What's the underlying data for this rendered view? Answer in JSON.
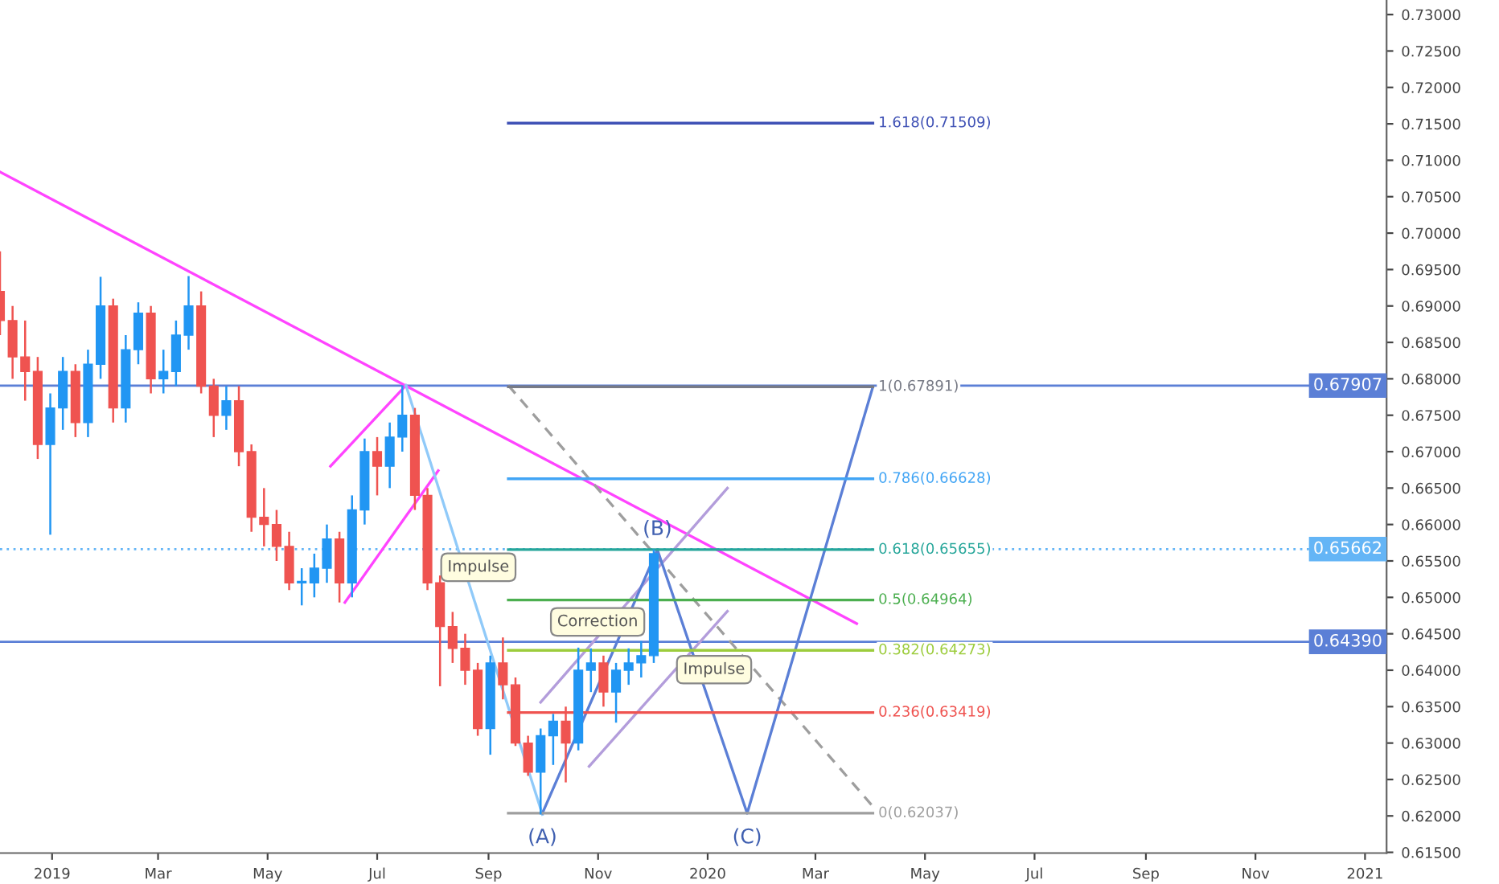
{
  "chart_data": {
    "type": "candlestick",
    "x": [
      "2018-12-03",
      "2018-12-10",
      "2018-12-17",
      "2018-12-24",
      "2018-12-31",
      "2019-01-07",
      "2019-01-14",
      "2019-01-21",
      "2019-01-28",
      "2019-02-04",
      "2019-02-11",
      "2019-02-18",
      "2019-02-25",
      "2019-03-04",
      "2019-03-11",
      "2019-03-18",
      "2019-03-25",
      "2019-04-01",
      "2019-04-08",
      "2019-04-15",
      "2019-04-22",
      "2019-04-29",
      "2019-05-06",
      "2019-05-13",
      "2019-05-20",
      "2019-05-27",
      "2019-06-03",
      "2019-06-10",
      "2019-06-17",
      "2019-06-24",
      "2019-07-01",
      "2019-07-08",
      "2019-07-15",
      "2019-07-22",
      "2019-07-29",
      "2019-08-05",
      "2019-08-12",
      "2019-08-19",
      "2019-08-26",
      "2019-09-02",
      "2019-09-09",
      "2019-09-16",
      "2019-09-23",
      "2019-09-30",
      "2019-10-07",
      "2019-10-14",
      "2019-10-21",
      "2019-10-28",
      "2019-11-04",
      "2019-11-11",
      "2019-11-18",
      "2019-11-25",
      "2019-12-02"
    ],
    "ohlc": [
      [
        0.692,
        0.6975,
        0.686,
        0.688
      ],
      [
        0.688,
        0.69,
        0.68,
        0.683
      ],
      [
        0.683,
        0.688,
        0.677,
        0.681
      ],
      [
        0.681,
        0.683,
        0.669,
        0.671
      ],
      [
        0.671,
        0.678,
        0.6586,
        0.676
      ],
      [
        0.676,
        0.683,
        0.673,
        0.681
      ],
      [
        0.681,
        0.682,
        0.672,
        0.674
      ],
      [
        0.674,
        0.684,
        0.672,
        0.682
      ],
      [
        0.682,
        0.694,
        0.68,
        0.69
      ],
      [
        0.69,
        0.691,
        0.674,
        0.676
      ],
      [
        0.676,
        0.686,
        0.674,
        0.684
      ],
      [
        0.684,
        0.6905,
        0.682,
        0.689
      ],
      [
        0.689,
        0.69,
        0.678,
        0.68
      ],
      [
        0.68,
        0.684,
        0.678,
        0.681
      ],
      [
        0.681,
        0.688,
        0.679,
        0.686
      ],
      [
        0.686,
        0.6941,
        0.684,
        0.69
      ],
      [
        0.69,
        0.692,
        0.678,
        0.679
      ],
      [
        0.679,
        0.68,
        0.672,
        0.675
      ],
      [
        0.675,
        0.679,
        0.673,
        0.677
      ],
      [
        0.677,
        0.679,
        0.668,
        0.67
      ],
      [
        0.67,
        0.671,
        0.659,
        0.661
      ],
      [
        0.661,
        0.665,
        0.657,
        0.66
      ],
      [
        0.66,
        0.662,
        0.655,
        0.657
      ],
      [
        0.657,
        0.659,
        0.651,
        0.652
      ],
      [
        0.652,
        0.654,
        0.6489,
        0.652
      ],
      [
        0.652,
        0.656,
        0.65,
        0.654
      ],
      [
        0.654,
        0.66,
        0.652,
        0.658
      ],
      [
        0.658,
        0.659,
        0.6493,
        0.652
      ],
      [
        0.652,
        0.664,
        0.65,
        0.662
      ],
      [
        0.662,
        0.6718,
        0.66,
        0.67
      ],
      [
        0.67,
        0.672,
        0.664,
        0.668
      ],
      [
        0.668,
        0.674,
        0.665,
        0.672
      ],
      [
        0.672,
        0.6791,
        0.67,
        0.675
      ],
      [
        0.675,
        0.676,
        0.662,
        0.664
      ],
      [
        0.664,
        0.665,
        0.651,
        0.652
      ],
      [
        0.652,
        0.653,
        0.6378,
        0.646
      ],
      [
        0.646,
        0.648,
        0.641,
        0.643
      ],
      [
        0.643,
        0.645,
        0.638,
        0.64
      ],
      [
        0.64,
        0.641,
        0.631,
        0.632
      ],
      [
        0.632,
        0.642,
        0.6284,
        0.641
      ],
      [
        0.641,
        0.6445,
        0.636,
        0.638
      ],
      [
        0.638,
        0.639,
        0.6296,
        0.63
      ],
      [
        0.63,
        0.631,
        0.6255,
        0.626
      ],
      [
        0.626,
        0.632,
        0.6202,
        0.631
      ],
      [
        0.631,
        0.634,
        0.627,
        0.633
      ],
      [
        0.633,
        0.635,
        0.6246,
        0.63
      ],
      [
        0.63,
        0.6431,
        0.629,
        0.64
      ],
      [
        0.64,
        0.643,
        0.637,
        0.641
      ],
      [
        0.641,
        0.642,
        0.635,
        0.637
      ],
      [
        0.637,
        0.641,
        0.6328,
        0.64
      ],
      [
        0.64,
        0.643,
        0.638,
        0.641
      ],
      [
        0.641,
        0.644,
        0.639,
        0.642
      ],
      [
        0.642,
        0.6566,
        0.641,
        0.656
      ]
    ],
    "colors": [
      "#ef5350",
      "#ef5350",
      "#ef5350",
      "#ef5350",
      "#2196f3",
      "#2196f3",
      "#ef5350",
      "#2196f3",
      "#2196f3",
      "#ef5350",
      "#2196f3",
      "#2196f3",
      "#ef5350",
      "#2196f3",
      "#2196f3",
      "#2196f3",
      "#ef5350",
      "#ef5350",
      "#2196f3",
      "#ef5350",
      "#ef5350",
      "#ef5350",
      "#ef5350",
      "#ef5350",
      "#2196f3",
      "#2196f3",
      "#2196f3",
      "#ef5350",
      "#2196f3",
      "#2196f3",
      "#ef5350",
      "#2196f3",
      "#2196f3",
      "#ef5350",
      "#ef5350",
      "#ef5350",
      "#ef5350",
      "#ef5350",
      "#ef5350",
      "#2196f3",
      "#ef5350",
      "#ef5350",
      "#ef5350",
      "#2196f3",
      "#2196f3",
      "#ef5350",
      "#2196f3",
      "#2196f3",
      "#ef5350",
      "#2196f3",
      "#2196f3",
      "#2196f3",
      "#2196f3"
    ],
    "series": [
      {
        "type": "line",
        "color": "#ff44ff",
        "x": [
          "2018-12-03",
          "2020-03-24"
        ],
        "values": [
          0.7084,
          0.6464
        ]
      },
      {
        "type": "line",
        "color": "#ff44ff",
        "x": [
          "2019-06-05",
          "2019-07-17"
        ],
        "values": [
          0.668,
          0.6791
        ]
      },
      {
        "type": "line",
        "color": "#ff44ff",
        "x": [
          "2019-06-13",
          "2019-08-04"
        ],
        "values": [
          0.6493,
          0.6674
        ]
      },
      {
        "type": "line",
        "color": "#90caf9",
        "x": [
          "2019-07-17",
          "2019-10-01"
        ],
        "values": [
          0.6791,
          0.6202
        ]
      },
      {
        "type": "line",
        "color": "#9e9e9e",
        "line_style": "dashed",
        "x": [
          "2019-09-12",
          "2020-04-02"
        ],
        "values": [
          0.6791,
          0.6213
        ]
      },
      {
        "type": "line",
        "color": "#b39ddb",
        "x": [
          "2019-09-30",
          "2020-01-12"
        ],
        "values": [
          0.6356,
          0.665
        ]
      },
      {
        "type": "line",
        "color": "#b39ddb",
        "x": [
          "2019-10-27",
          "2020-01-12"
        ],
        "values": [
          0.6268,
          0.6481
        ]
      },
      {
        "type": "line",
        "color": "#5b7fd6",
        "x": [
          "2019-10-01",
          "2019-12-04",
          "2020-01-23",
          "2020-04-02"
        ],
        "values": [
          0.62037,
          0.65655,
          0.62037,
          0.67891
        ]
      },
      {
        "type": "line",
        "name": "1.618(0.71509)",
        "color": "#3f51b5",
        "x": [
          "2019-09-12",
          "2020-04-02"
        ],
        "values": [
          0.71509,
          0.71509
        ]
      },
      {
        "type": "line",
        "name": "1(0.67891)",
        "color": "#787b86",
        "x": [
          "2019-09-12",
          "2020-04-02"
        ],
        "values": [
          0.67891,
          0.67891
        ]
      },
      {
        "type": "line",
        "name": "0.786(0.66628)",
        "color": "#42a5f5",
        "x": [
          "2019-09-12",
          "2020-04-02"
        ],
        "values": [
          0.66628,
          0.66628
        ]
      },
      {
        "type": "line",
        "name": "0.618(0.65655)",
        "color": "#26a69a",
        "x": [
          "2019-09-12",
          "2020-04-02"
        ],
        "values": [
          0.65655,
          0.65655
        ]
      },
      {
        "type": "line",
        "name": "0.5(0.64964)",
        "color": "#4caf50",
        "x": [
          "2019-09-12",
          "2020-04-02"
        ],
        "values": [
          0.64964,
          0.64964
        ]
      },
      {
        "type": "line",
        "name": "0.382(0.64273)",
        "color": "#9ccc3c",
        "x": [
          "2019-09-12",
          "2020-04-02"
        ],
        "values": [
          0.64273,
          0.64273
        ]
      },
      {
        "type": "line",
        "name": "0.236(0.63419)",
        "color": "#ef5350",
        "x": [
          "2019-09-12",
          "2020-04-02"
        ],
        "values": [
          0.63419,
          0.63419
        ]
      },
      {
        "type": "line",
        "name": "0(0.62037)",
        "color": "#9e9e9e",
        "x": [
          "2019-09-12",
          "2020-04-02"
        ],
        "values": [
          0.62037,
          0.62037
        ]
      }
    ],
    "ref_lines": [
      {
        "axis": "y",
        "value": 0.67907,
        "label": "0.67907",
        "color": "#5b7fd6"
      },
      {
        "axis": "y",
        "value": 0.65662,
        "label": "0.65662",
        "color": "#64b5f6",
        "line_style": "dotted"
      },
      {
        "axis": "y",
        "value": 0.6439,
        "label": "0.64390",
        "color": "#5b7fd6"
      }
    ],
    "annotations": [
      "Impulse",
      "Correction",
      "Impulse",
      {
        "text": "(A)",
        "x": "2019-10-01",
        "y": 0.62037
      },
      {
        "text": "(B)",
        "x": "2019-12-04",
        "y": 0.65655
      },
      {
        "text": "(C)",
        "x": "2020-01-23",
        "y": 0.62037
      }
    ],
    "xlim": [
      "2018-12-03",
      "2021-01-13"
    ],
    "xticks": [
      {
        "value": "2019-01-01",
        "label": "2019"
      },
      {
        "value": "2019-03-01",
        "label": "Mar"
      },
      {
        "value": "2019-05-01",
        "label": "May"
      },
      {
        "value": "2019-07-01",
        "label": "Jul"
      },
      {
        "value": "2019-09-01",
        "label": "Sep"
      },
      {
        "value": "2019-11-01",
        "label": "Nov"
      },
      {
        "value": "2020-01-01",
        "label": "2020"
      },
      {
        "value": "2020-03-01",
        "label": "Mar"
      },
      {
        "value": "2020-05-01",
        "label": "May"
      },
      {
        "value": "2020-07-01",
        "label": "Jul"
      },
      {
        "value": "2020-09-01",
        "label": "Sep"
      },
      {
        "value": "2020-11-01",
        "label": "Nov"
      },
      {
        "value": "2021-01-01",
        "label": "2021"
      }
    ],
    "ylim": [
      0.6149,
      0.732
    ],
    "yticks": [
      {
        "value": 0.615,
        "label": "0.61500"
      },
      {
        "value": 0.62,
        "label": "0.62000"
      },
      {
        "value": 0.625,
        "label": "0.62500"
      },
      {
        "value": 0.63,
        "label": "0.63000"
      },
      {
        "value": 0.635,
        "label": "0.63500"
      },
      {
        "value": 0.64,
        "label": "0.64000"
      },
      {
        "value": 0.645,
        "label": "0.64500"
      },
      {
        "value": 0.65,
        "label": "0.65000"
      },
      {
        "value": 0.655,
        "label": "0.65500"
      },
      {
        "value": 0.66,
        "label": "0.66000"
      },
      {
        "value": 0.665,
        "label": "0.66500"
      },
      {
        "value": 0.67,
        "label": "0.67000"
      },
      {
        "value": 0.675,
        "label": "0.67500"
      },
      {
        "value": 0.68,
        "label": "0.68000"
      },
      {
        "value": 0.685,
        "label": "0.68500"
      },
      {
        "value": 0.69,
        "label": "0.69000"
      },
      {
        "value": 0.695,
        "label": "0.69500"
      },
      {
        "value": 0.7,
        "label": "0.70000"
      },
      {
        "value": 0.705,
        "label": "0.70500"
      },
      {
        "value": 0.71,
        "label": "0.71000"
      },
      {
        "value": 0.715,
        "label": "0.71500"
      },
      {
        "value": 0.72,
        "label": "0.72000"
      },
      {
        "value": 0.725,
        "label": "0.72500"
      },
      {
        "value": 0.73,
        "label": "0.73000"
      }
    ],
    "grid": false,
    "legend": false
  }
}
